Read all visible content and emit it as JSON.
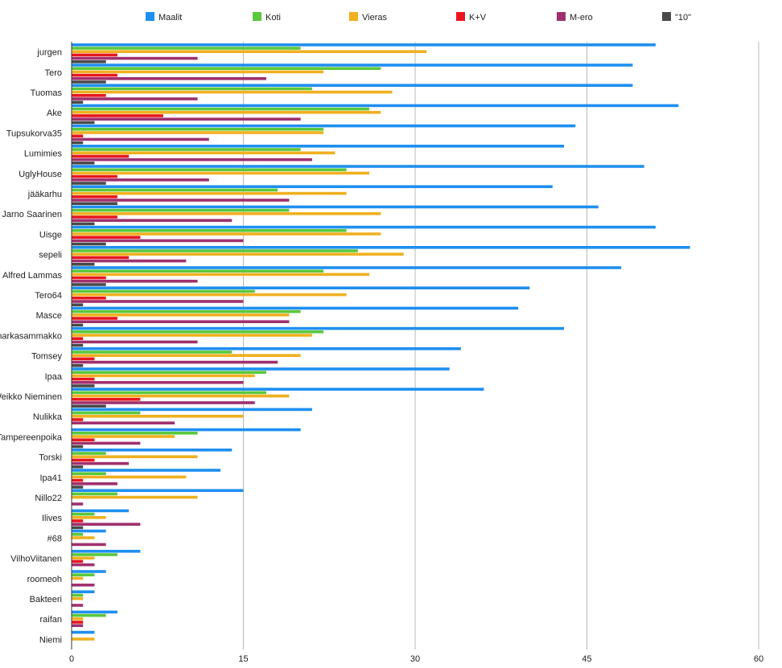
{
  "chart_data": {
    "type": "bar",
    "orientation": "horizontal",
    "legend_placement": "top",
    "grid": true,
    "xlim": [
      0,
      60
    ],
    "xticks": [
      0,
      15,
      30,
      45,
      60
    ],
    "categories": [
      "jurgen",
      "Tero",
      "Tuomas",
      "Ake",
      "Tupsukorva35",
      "Lumimies",
      "UglyHouse",
      "jääkarhu",
      "Jarno Saarinen",
      "Uisge",
      "sepeli",
      "Alfred Lammas",
      "Tero64",
      "Masce",
      "harkasammakko",
      "Tomsey",
      "Ipaa",
      "Weikko Nieminen",
      "Nulikka",
      "Tampereenpoika",
      "Torski",
      "Ipa41",
      "Nillo22",
      "Ilives",
      "#68",
      "VilhoViitanen",
      "roomeoh",
      "Bakteeri",
      "raifan",
      "Niemi"
    ],
    "series": [
      {
        "name": "Maalit",
        "color": "#1f8ff0",
        "values": [
          51,
          49,
          49,
          53,
          44,
          43,
          50,
          42,
          46,
          51,
          54,
          48,
          40,
          39,
          43,
          34,
          33,
          36,
          21,
          20,
          14,
          13,
          15,
          5,
          3,
          6,
          3,
          2,
          4,
          2
        ]
      },
      {
        "name": "Koti",
        "color": "#5ac83c",
        "values": [
          20,
          27,
          21,
          26,
          22,
          20,
          24,
          18,
          19,
          24,
          25,
          22,
          16,
          20,
          22,
          14,
          17,
          17,
          6,
          11,
          3,
          3,
          4,
          2,
          1,
          4,
          2,
          1,
          3,
          0
        ]
      },
      {
        "name": "Vieras",
        "color": "#f0b020",
        "values": [
          31,
          22,
          28,
          27,
          22,
          23,
          26,
          24,
          27,
          27,
          29,
          26,
          24,
          19,
          21,
          20,
          16,
          19,
          15,
          9,
          11,
          10,
          11,
          3,
          2,
          2,
          1,
          1,
          1,
          2
        ]
      },
      {
        "name": "K+V",
        "color": "#e8161e",
        "values": [
          4,
          4,
          3,
          8,
          1,
          5,
          4,
          4,
          4,
          6,
          5,
          3,
          3,
          4,
          1,
          2,
          2,
          6,
          1,
          2,
          2,
          1,
          0,
          1,
          0,
          1,
          0,
          0,
          1,
          0
        ]
      },
      {
        "name": "M-ero",
        "color": "#a0306e",
        "values": [
          11,
          17,
          11,
          20,
          12,
          21,
          12,
          19,
          14,
          15,
          10,
          11,
          15,
          19,
          11,
          18,
          15,
          16,
          9,
          6,
          5,
          4,
          1,
          6,
          3,
          2,
          2,
          1,
          1,
          0
        ]
      },
      {
        "name": "\"10\"",
        "color": "#4a4a4a",
        "values": [
          3,
          3,
          1,
          2,
          1,
          2,
          3,
          4,
          2,
          3,
          2,
          3,
          1,
          1,
          1,
          1,
          2,
          3,
          0,
          1,
          1,
          1,
          0,
          1,
          0,
          0,
          0,
          0,
          0,
          0
        ]
      }
    ]
  }
}
